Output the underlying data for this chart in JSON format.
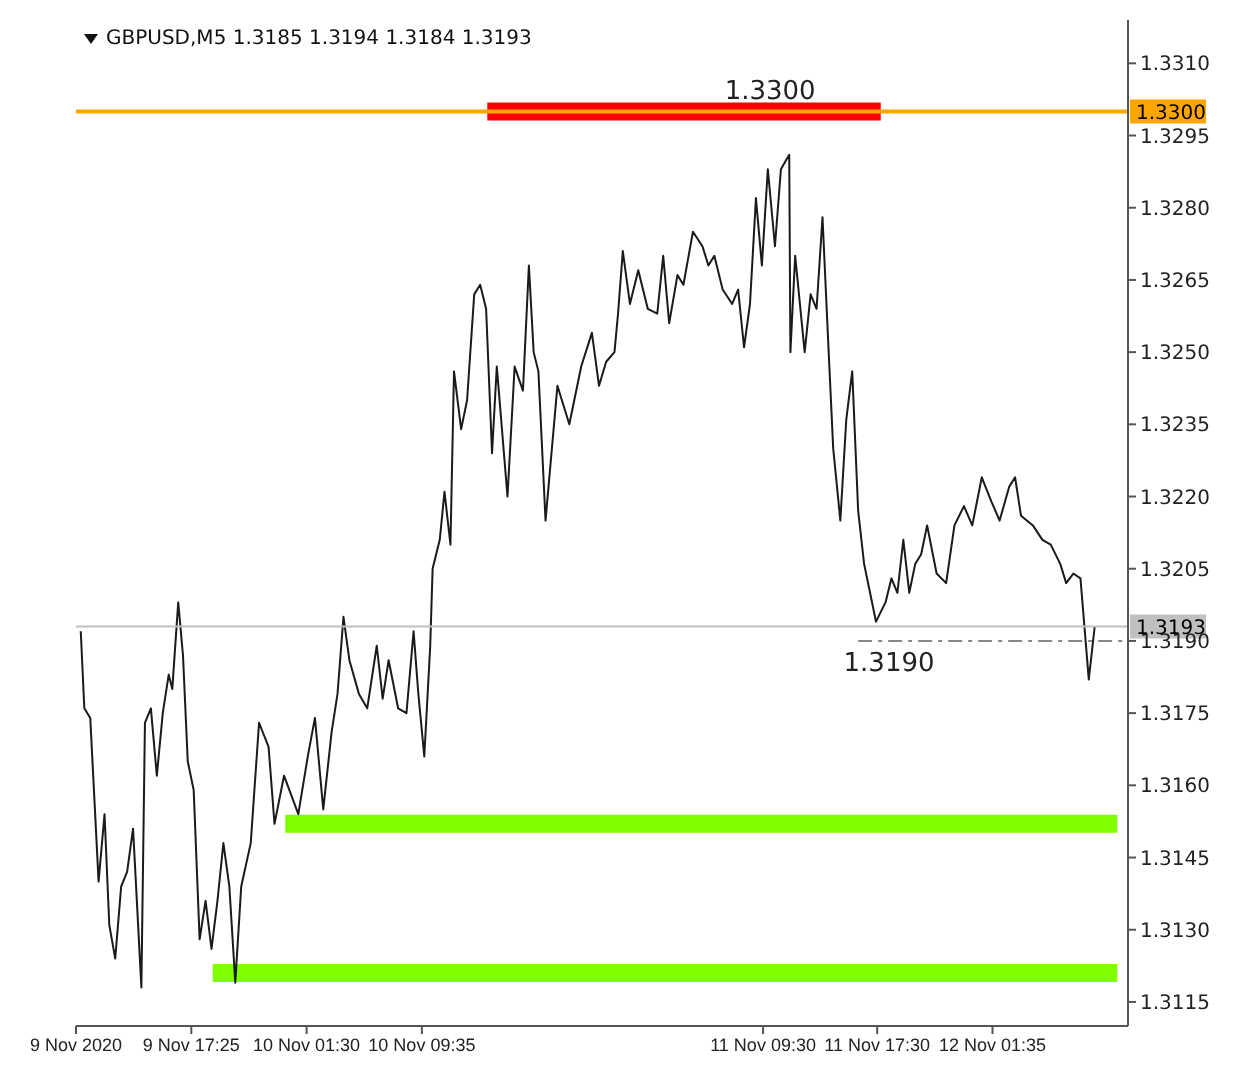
{
  "chart_data": {
    "type": "line",
    "title": "GBPUSD,M5  1.3185 1.3194 1.3184 1.3193",
    "xlim": [
      "2020-11-09T09:20",
      "2020-11-12T11:05"
    ],
    "xticks": [
      {
        "value": "2020-11-09T09:20",
        "label": "9 Nov 2020"
      },
      {
        "value": "2020-11-09T17:25",
        "label": "9 Nov 17:25"
      },
      {
        "value": "2020-11-10T01:30",
        "label": "10 Nov 01:30"
      },
      {
        "value": "2020-11-10T09:35",
        "label": "10 Nov 09:35"
      },
      {
        "value": "2020-11-11T09:30",
        "label": "11 Nov 09:30"
      },
      {
        "value": "2020-11-11T17:30",
        "label": "11 Nov 17:30"
      },
      {
        "value": "2020-11-12T01:35",
        "label": "12 Nov 01:35"
      }
    ],
    "ylim": [
      1.311,
      1.3319
    ],
    "yticks": [
      {
        "value": 1.3115,
        "label": "1.3115"
      },
      {
        "value": 1.313,
        "label": "1.3130"
      },
      {
        "value": 1.3145,
        "label": "1.3145"
      },
      {
        "value": 1.316,
        "label": "1.3160"
      },
      {
        "value": 1.3175,
        "label": "1.3175"
      },
      {
        "value": 1.319,
        "label": "1.3190"
      },
      {
        "value": 1.3205,
        "label": "1.3205"
      },
      {
        "value": 1.322,
        "label": "1.3220"
      },
      {
        "value": 1.3235,
        "label": "1.3235"
      },
      {
        "value": 1.325,
        "label": "1.3250"
      },
      {
        "value": 1.3265,
        "label": "1.3265"
      },
      {
        "value": 1.328,
        "label": "1.3280"
      },
      {
        "value": 1.3295,
        "label": "1.3295"
      },
      {
        "value": 1.331,
        "label": "1.3310"
      }
    ],
    "grid": false,
    "marker": "none",
    "series": [
      {
        "color": "#ff0000",
        "x": [
          "2020-11-10T14:10",
          "2020-11-11T17:45"
        ],
        "values": [
          1.33,
          1.33
        ]
      },
      {
        "color": "#80ff00",
        "x": [
          "2020-11-10T00:00",
          "2020-11-12T10:20"
        ],
        "values": [
          1.3152,
          1.3152
        ]
      },
      {
        "color": "#80ff00",
        "x": [
          "2020-11-09T18:55",
          "2020-11-12T10:20"
        ],
        "values": [
          1.3121,
          1.3121
        ]
      },
      {
        "color": "#888888",
        "line_style": "dashed",
        "x": [
          "2020-11-11T16:10",
          "2020-11-12T11:05"
        ],
        "values": [
          1.319,
          1.319
        ]
      },
      {
        "color": "#1a1a1a",
        "x": [
          "2020-11-09T09:40",
          "2020-11-09T09:55",
          "2020-11-09T10:20",
          "2020-11-09T10:55",
          "2020-11-09T11:20",
          "2020-11-09T11:40",
          "2020-11-09T12:05",
          "2020-11-09T12:30",
          "2020-11-09T12:55",
          "2020-11-09T13:20",
          "2020-11-09T13:55",
          "2020-11-09T14:10",
          "2020-11-09T14:35",
          "2020-11-09T15:00",
          "2020-11-09T15:25",
          "2020-11-09T15:50",
          "2020-11-09T16:05",
          "2020-11-09T16:30",
          "2020-11-09T16:50",
          "2020-11-09T17:10",
          "2020-11-09T17:35",
          "2020-11-09T18:00",
          "2020-11-09T18:25",
          "2020-11-09T18:50",
          "2020-11-09T19:15",
          "2020-11-09T19:40",
          "2020-11-09T20:05",
          "2020-11-09T20:30",
          "2020-11-09T20:55",
          "2020-11-09T21:35",
          "2020-11-09T22:10",
          "2020-11-09T22:50",
          "2020-11-09T23:15",
          "2020-11-09T23:55",
          "2020-11-10T00:55",
          "2020-11-10T01:35",
          "2020-11-10T02:05",
          "2020-11-10T02:40",
          "2020-11-10T03:15",
          "2020-11-10T03:40",
          "2020-11-10T04:05",
          "2020-11-10T04:30",
          "2020-11-10T05:10",
          "2020-11-10T05:45",
          "2020-11-10T06:25",
          "2020-11-10T06:50",
          "2020-11-10T07:15",
          "2020-11-10T07:55",
          "2020-11-10T08:30",
          "2020-11-10T09:00",
          "2020-11-10T09:20",
          "2020-11-10T09:45",
          "2020-11-10T10:10",
          "2020-11-10T10:20",
          "2020-11-10T10:50",
          "2020-11-10T11:10",
          "2020-11-10T11:35",
          "2020-11-10T11:50",
          "2020-11-10T12:20",
          "2020-11-10T12:45",
          "2020-11-10T13:15",
          "2020-11-10T13:40",
          "2020-11-10T14:05",
          "2020-11-10T14:30",
          "2020-11-10T14:50",
          "2020-11-10T15:35",
          "2020-11-10T16:05",
          "2020-11-10T16:40",
          "2020-11-10T17:05",
          "2020-11-10T17:25",
          "2020-11-10T17:45",
          "2020-11-10T18:15",
          "2020-11-10T19:05",
          "2020-11-10T19:55",
          "2020-11-10T20:45",
          "2020-11-10T21:30",
          "2020-11-10T22:00",
          "2020-11-10T22:30",
          "2020-11-10T23:05",
          "2020-11-10T23:20",
          "2020-11-10T23:40",
          "2020-11-11T00:10",
          "2020-11-11T00:45",
          "2020-11-11T01:25",
          "2020-11-11T02:05",
          "2020-11-11T02:30",
          "2020-11-11T02:55",
          "2020-11-11T03:30",
          "2020-11-11T03:55",
          "2020-11-11T04:35",
          "2020-11-11T05:15",
          "2020-11-11T05:40",
          "2020-11-11T06:05",
          "2020-11-11T06:40",
          "2020-11-11T07:20",
          "2020-11-11T07:45",
          "2020-11-11T08:10",
          "2020-11-11T08:35",
          "2020-11-11T09:00",
          "2020-11-11T09:25",
          "2020-11-11T09:50",
          "2020-11-11T10:20",
          "2020-11-11T10:45",
          "2020-11-11T11:20",
          "2020-11-11T11:25",
          "2020-11-11T11:45",
          "2020-11-11T12:25",
          "2020-11-11T12:50",
          "2020-11-11T13:15",
          "2020-11-11T13:40",
          "2020-11-11T14:05",
          "2020-11-11T14:25",
          "2020-11-11T14:55",
          "2020-11-11T15:20",
          "2020-11-11T15:45",
          "2020-11-11T16:10",
          "2020-11-11T16:35",
          "2020-11-11T17:00",
          "2020-11-11T17:25",
          "2020-11-11T18:05",
          "2020-11-11T18:30",
          "2020-11-11T18:55",
          "2020-11-11T19:20",
          "2020-11-11T19:45",
          "2020-11-11T20:10",
          "2020-11-11T20:35",
          "2020-11-11T21:00",
          "2020-11-11T21:40",
          "2020-11-11T22:20",
          "2020-11-11T22:55",
          "2020-11-11T23:35",
          "2020-11-12T00:10",
          "2020-11-12T00:50",
          "2020-11-12T01:30",
          "2020-11-12T02:05",
          "2020-11-12T02:45",
          "2020-11-12T03:10",
          "2020-11-12T03:35",
          "2020-11-12T04:25",
          "2020-11-12T05:05",
          "2020-11-12T05:40",
          "2020-11-12T06:20",
          "2020-11-12T06:45",
          "2020-11-12T07:15",
          "2020-11-12T07:45",
          "2020-11-12T08:20",
          "2020-11-12T08:45"
        ],
        "values": [
          1.3192,
          1.3176,
          1.3174,
          1.314,
          1.3154,
          1.3131,
          1.3124,
          1.3139,
          1.3142,
          1.3151,
          1.3118,
          1.3173,
          1.3176,
          1.3162,
          1.3175,
          1.3183,
          1.318,
          1.3198,
          1.3187,
          1.3165,
          1.3159,
          1.3128,
          1.3136,
          1.3126,
          1.3136,
          1.3148,
          1.3139,
          1.3119,
          1.3139,
          1.3148,
          1.3173,
          1.3168,
          1.3152,
          1.3162,
          1.3154,
          1.3166,
          1.3174,
          1.3155,
          1.3171,
          1.3179,
          1.3195,
          1.3186,
          1.3179,
          1.3176,
          1.3189,
          1.3178,
          1.3186,
          1.3176,
          1.3175,
          1.3192,
          1.3179,
          1.3166,
          1.3189,
          1.3205,
          1.3211,
          1.3221,
          1.321,
          1.3246,
          1.3234,
          1.324,
          1.3262,
          1.3264,
          1.3259,
          1.3229,
          1.3247,
          1.322,
          1.3247,
          1.3242,
          1.3268,
          1.325,
          1.3246,
          1.3215,
          1.3243,
          1.3235,
          1.3247,
          1.3254,
          1.3243,
          1.3248,
          1.325,
          1.3258,
          1.3271,
          1.326,
          1.3267,
          1.3259,
          1.3258,
          1.327,
          1.3256,
          1.3266,
          1.3264,
          1.3275,
          1.3272,
          1.3268,
          1.327,
          1.3263,
          1.326,
          1.3263,
          1.3251,
          1.326,
          1.3282,
          1.3268,
          1.3288,
          1.3272,
          1.3288,
          1.3291,
          1.325,
          1.327,
          1.325,
          1.3262,
          1.3259,
          1.3278,
          1.3251,
          1.323,
          1.3215,
          1.3236,
          1.3246,
          1.3217,
          1.3206,
          1.32,
          1.3194,
          1.3198,
          1.3203,
          1.32,
          1.3211,
          1.32,
          1.3206,
          1.3208,
          1.3214,
          1.3204,
          1.3202,
          1.3214,
          1.3218,
          1.3214,
          1.3224,
          1.3219,
          1.3215,
          1.3222,
          1.3224,
          1.3216,
          1.3214,
          1.3211,
          1.321,
          1.3206,
          1.3202,
          1.3204,
          1.3203,
          1.3182,
          1.3193
        ]
      }
    ],
    "ref_lines": [
      {
        "axis": "y",
        "value": 1.3193,
        "label": "1.3193",
        "color": "#c0c0c0"
      },
      {
        "axis": "y",
        "value": 1.33,
        "label": "1.3300",
        "color": "#ffa500"
      }
    ],
    "annotations": [
      {
        "text": "1.3300",
        "x": "2020-11-11T10:00",
        "y": 1.33
      },
      {
        "text": "1.3190",
        "x": "2020-11-11T18:20",
        "y": 1.319
      }
    ]
  }
}
